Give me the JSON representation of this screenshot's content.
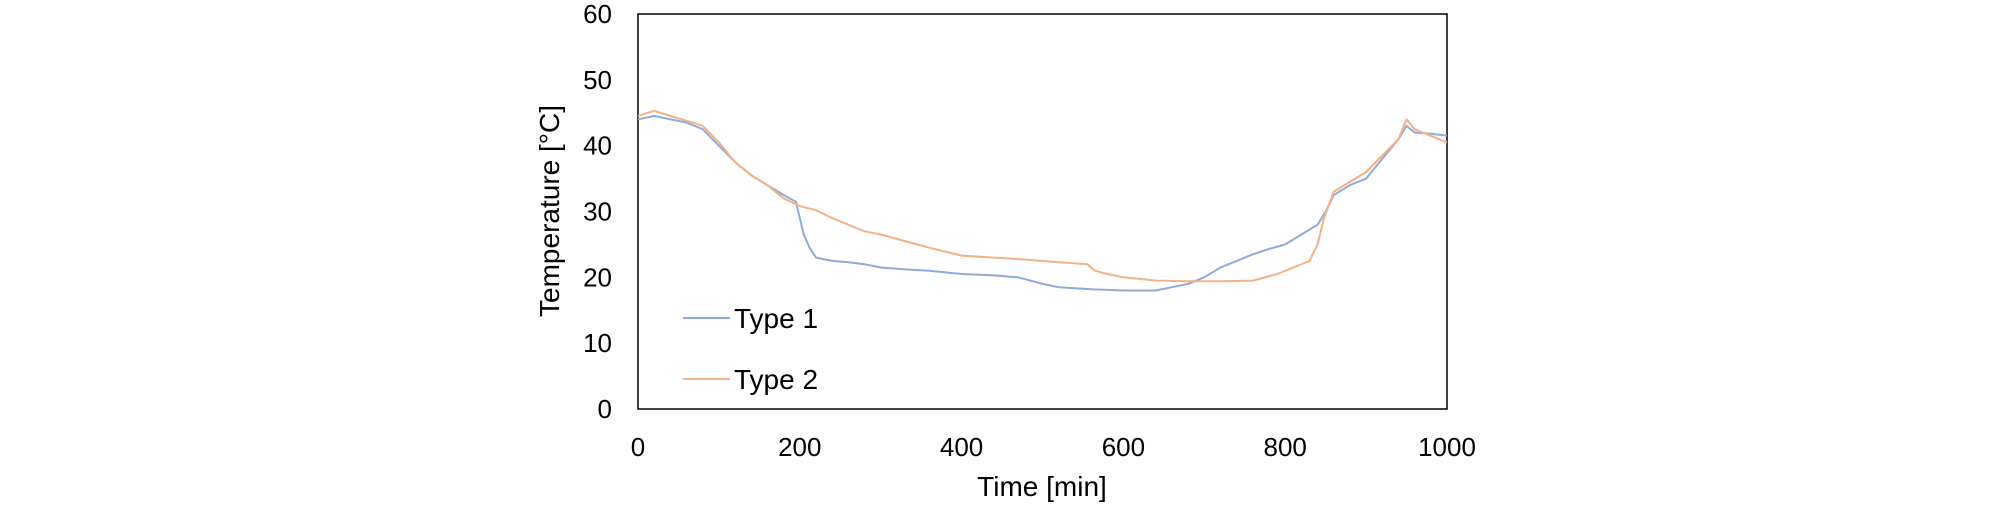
{
  "chart_data": {
    "type": "line",
    "xlabel": "Time [min]",
    "ylabel": "Temperature [°C]",
    "xlim": [
      0,
      1000
    ],
    "ylim": [
      0,
      60
    ],
    "xticks": [
      "0",
      "200",
      "400",
      "600",
      "800",
      "1000"
    ],
    "yticks": [
      "0",
      "10",
      "20",
      "30",
      "40",
      "50",
      "60"
    ],
    "grid": false,
    "legend_position": "bottom-left",
    "series": [
      {
        "name": "Type 1",
        "color": "#8faadc",
        "points": [
          [
            0,
            44
          ],
          [
            20,
            44.5
          ],
          [
            40,
            44
          ],
          [
            60,
            43.5
          ],
          [
            80,
            42.5
          ],
          [
            100,
            40
          ],
          [
            120,
            37.5
          ],
          [
            140,
            35.5
          ],
          [
            160,
            34
          ],
          [
            180,
            32.5
          ],
          [
            195,
            31.5
          ],
          [
            200,
            29
          ],
          [
            205,
            26.5
          ],
          [
            212,
            24.5
          ],
          [
            220,
            23
          ],
          [
            240,
            22.5
          ],
          [
            260,
            22.3
          ],
          [
            280,
            22
          ],
          [
            300,
            21.5
          ],
          [
            330,
            21.2
          ],
          [
            360,
            21
          ],
          [
            400,
            20.5
          ],
          [
            440,
            20.3
          ],
          [
            470,
            20
          ],
          [
            500,
            19
          ],
          [
            520,
            18.5
          ],
          [
            560,
            18.2
          ],
          [
            600,
            18
          ],
          [
            640,
            18
          ],
          [
            660,
            18.5
          ],
          [
            680,
            19
          ],
          [
            700,
            20
          ],
          [
            720,
            21.5
          ],
          [
            740,
            22.5
          ],
          [
            760,
            23.5
          ],
          [
            780,
            24.3
          ],
          [
            800,
            25
          ],
          [
            820,
            26.5
          ],
          [
            840,
            28
          ],
          [
            850,
            30
          ],
          [
            860,
            32.5
          ],
          [
            880,
            34
          ],
          [
            900,
            35
          ],
          [
            920,
            38
          ],
          [
            940,
            41
          ],
          [
            950,
            43
          ],
          [
            960,
            42
          ],
          [
            980,
            41.8
          ],
          [
            1000,
            41.5
          ]
        ]
      },
      {
        "name": "Type 2",
        "color": "#f4b183",
        "points": [
          [
            0,
            44.5
          ],
          [
            20,
            45.3
          ],
          [
            40,
            44.5
          ],
          [
            60,
            43.8
          ],
          [
            80,
            43
          ],
          [
            100,
            40.5
          ],
          [
            120,
            37.5
          ],
          [
            140,
            35.5
          ],
          [
            160,
            34
          ],
          [
            180,
            32
          ],
          [
            200,
            30.8
          ],
          [
            220,
            30.2
          ],
          [
            240,
            29
          ],
          [
            260,
            28
          ],
          [
            280,
            27
          ],
          [
            300,
            26.5
          ],
          [
            330,
            25.5
          ],
          [
            360,
            24.5
          ],
          [
            400,
            23.3
          ],
          [
            440,
            23
          ],
          [
            480,
            22.7
          ],
          [
            520,
            22.3
          ],
          [
            555,
            22
          ],
          [
            565,
            21
          ],
          [
            580,
            20.5
          ],
          [
            600,
            20
          ],
          [
            640,
            19.5
          ],
          [
            680,
            19.4
          ],
          [
            720,
            19.4
          ],
          [
            760,
            19.5
          ],
          [
            790,
            20.5
          ],
          [
            810,
            21.5
          ],
          [
            830,
            22.5
          ],
          [
            840,
            25
          ],
          [
            848,
            29
          ],
          [
            860,
            33
          ],
          [
            880,
            34.5
          ],
          [
            900,
            36
          ],
          [
            920,
            38.5
          ],
          [
            940,
            41
          ],
          [
            950,
            44
          ],
          [
            960,
            42.5
          ],
          [
            980,
            41.5
          ],
          [
            1000,
            40.5
          ]
        ]
      }
    ]
  }
}
